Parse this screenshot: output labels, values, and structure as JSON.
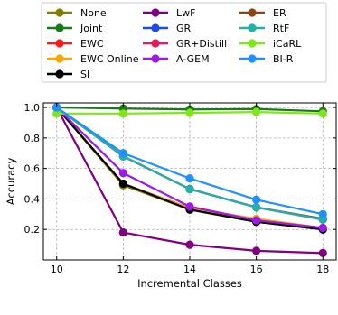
{
  "chart_data": {
    "type": "line",
    "xlabel": "Incremental Classes",
    "ylabel": "Accuracy",
    "xlim": [
      9.6,
      18.4
    ],
    "ylim": [
      0.0,
      1.03
    ],
    "x": [
      10,
      12,
      14,
      16,
      18
    ],
    "x_ticks": [
      "10",
      "12",
      "14",
      "16",
      "18"
    ],
    "y_ticks": [
      "0.2",
      "0.4",
      "0.6",
      "0.8",
      "1.0"
    ],
    "y_tick_values": [
      0.2,
      0.4,
      0.6,
      0.8,
      1.0
    ],
    "grid": true,
    "legend_placement": "top, outside plot, 3 columns",
    "series": [
      {
        "name": "None",
        "color": "#808000",
        "values": [
          1.0,
          0.49,
          0.33,
          0.25,
          0.2
        ]
      },
      {
        "name": "Joint",
        "color": "#1a7a1a",
        "values": [
          1.0,
          0.993,
          0.987,
          0.99,
          0.975
        ]
      },
      {
        "name": "EWC",
        "color": "#ff1a1a",
        "values": [
          1.0,
          0.5,
          0.34,
          0.26,
          0.21
        ]
      },
      {
        "name": "EWC Online",
        "color": "#ffa500",
        "values": [
          1.0,
          0.5,
          0.34,
          0.27,
          0.21
        ]
      },
      {
        "name": "SI",
        "color": "#000000",
        "values": [
          1.0,
          0.5,
          0.33,
          0.25,
          0.2
        ]
      },
      {
        "name": "LwF",
        "color": "#800080",
        "values": [
          1.0,
          0.18,
          0.1,
          0.06,
          0.045
        ]
      },
      {
        "name": "GR",
        "color": "#1a4de6",
        "values": [
          1.0,
          0.68,
          0.465,
          0.345,
          0.265
        ]
      },
      {
        "name": "GR+Distill",
        "color": "#e6195a",
        "values": [
          1.0,
          0.68,
          0.465,
          0.345,
          0.265
        ]
      },
      {
        "name": "A-GEM",
        "color": "#9b1ae6",
        "values": [
          1.0,
          0.57,
          0.35,
          0.26,
          0.21
        ]
      },
      {
        "name": "ER",
        "color": "#8b4513",
        "values": [
          1.0,
          0.68,
          0.465,
          0.345,
          0.27
        ]
      },
      {
        "name": "RtF",
        "color": "#20b2aa",
        "values": [
          1.0,
          0.68,
          0.465,
          0.345,
          0.265
        ]
      },
      {
        "name": "iCaRL",
        "color": "#7fe61a",
        "values": [
          0.96,
          0.96,
          0.965,
          0.97,
          0.96
        ]
      },
      {
        "name": "BI-R",
        "color": "#1e90ff",
        "values": [
          1.0,
          0.7,
          0.535,
          0.395,
          0.3
        ]
      }
    ]
  }
}
